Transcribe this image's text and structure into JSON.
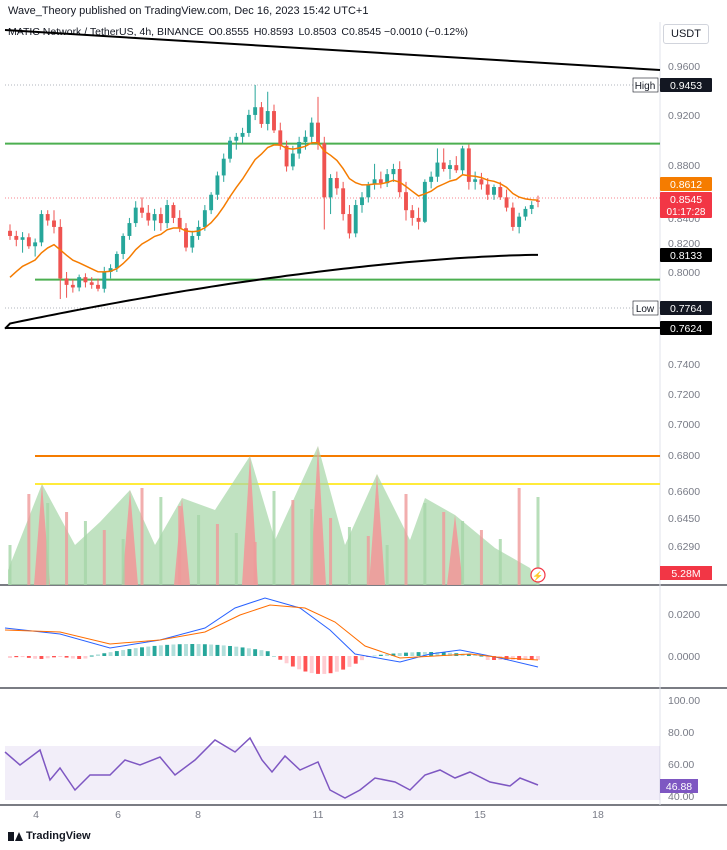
{
  "header": {
    "published": "Wave_Theory published on TradingView.com, Dec 16, 2023 15:42 UTC+1",
    "symbol": "MATIC Network / TetherUS, 4h, BINANCE",
    "o_label": "O",
    "o_val": "0.8555",
    "h_label": "H",
    "h_val": "0.8593",
    "l_label": "L",
    "l_val": "0.8503",
    "c_label": "C",
    "c_val": "0.8545",
    "change": "−0.0010 (−0.12%)",
    "currency": "USDT"
  },
  "footer": {
    "brand": "TradingView"
  },
  "chart_data": {
    "type": "candlestick",
    "price_axis": {
      "ticks": [
        "0.9600",
        "0.9200",
        "0.8800",
        "0.8400",
        "0.8200",
        "0.8000",
        "0.7400",
        "0.7200",
        "0.7000",
        "0.6800",
        "0.6600",
        "0.6450",
        "0.6290"
      ]
    },
    "x_ticks": [
      "4",
      "6",
      "8",
      "11",
      "13",
      "15",
      "18"
    ],
    "badges": {
      "high": {
        "label": "High",
        "value": "0.9453"
      },
      "ema50": {
        "value": "0.8612"
      },
      "last": {
        "value": "0.8545",
        "timer": "01:17:28"
      },
      "ema200": {
        "value": "0.8133"
      },
      "low": {
        "label": "Low",
        "value": "0.7764"
      },
      "trendline": {
        "value": "0.7624"
      }
    },
    "horizontal_levels": [
      0.8997,
      0.7941
    ],
    "trendlines": [
      {
        "from": [
          0,
          0.9815
        ],
        "to": [
          1,
          0.9577
        ]
      },
      {
        "from": [
          0,
          0.76
        ],
        "to": [
          1,
          0.7624
        ]
      }
    ],
    "candles": [
      [
        0.832,
        0.837,
        0.825,
        0.828
      ],
      [
        0.828,
        0.832,
        0.82,
        0.825
      ],
      [
        0.825,
        0.831,
        0.815,
        0.827
      ],
      [
        0.827,
        0.83,
        0.818,
        0.82
      ],
      [
        0.82,
        0.826,
        0.812,
        0.823
      ],
      [
        0.823,
        0.848,
        0.82,
        0.845
      ],
      [
        0.845,
        0.848,
        0.836,
        0.84
      ],
      [
        0.84,
        0.848,
        0.83,
        0.835
      ],
      [
        0.835,
        0.841,
        0.779,
        0.795
      ],
      [
        0.795,
        0.8,
        0.78,
        0.79
      ],
      [
        0.79,
        0.794,
        0.784,
        0.788
      ],
      [
        0.788,
        0.798,
        0.785,
        0.796
      ],
      [
        0.796,
        0.799,
        0.788,
        0.792
      ],
      [
        0.792,
        0.796,
        0.787,
        0.79
      ],
      [
        0.79,
        0.795,
        0.785,
        0.787
      ],
      [
        0.787,
        0.804,
        0.784,
        0.8
      ],
      [
        0.8,
        0.806,
        0.795,
        0.803
      ],
      [
        0.803,
        0.816,
        0.8,
        0.814
      ],
      [
        0.814,
        0.83,
        0.81,
        0.828
      ],
      [
        0.828,
        0.842,
        0.825,
        0.838
      ],
      [
        0.838,
        0.855,
        0.835,
        0.85
      ],
      [
        0.85,
        0.858,
        0.842,
        0.846
      ],
      [
        0.846,
        0.852,
        0.836,
        0.84
      ],
      [
        0.84,
        0.849,
        0.832,
        0.845
      ],
      [
        0.845,
        0.85,
        0.832,
        0.838
      ],
      [
        0.838,
        0.856,
        0.834,
        0.852
      ],
      [
        0.852,
        0.854,
        0.838,
        0.842
      ],
      [
        0.842,
        0.848,
        0.831,
        0.834
      ],
      [
        0.834,
        0.838,
        0.816,
        0.819
      ],
      [
        0.819,
        0.832,
        0.815,
        0.828
      ],
      [
        0.828,
        0.84,
        0.825,
        0.835
      ],
      [
        0.835,
        0.852,
        0.832,
        0.848
      ],
      [
        0.848,
        0.862,
        0.845,
        0.86
      ],
      [
        0.86,
        0.878,
        0.856,
        0.875
      ],
      [
        0.875,
        0.892,
        0.87,
        0.888
      ],
      [
        0.888,
        0.905,
        0.885,
        0.902
      ],
      [
        0.902,
        0.908,
        0.895,
        0.905
      ],
      [
        0.905,
        0.912,
        0.9,
        0.908
      ],
      [
        0.908,
        0.926,
        0.905,
        0.922
      ],
      [
        0.922,
        0.9453,
        0.918,
        0.928
      ],
      [
        0.928,
        0.932,
        0.912,
        0.915
      ],
      [
        0.915,
        0.94,
        0.91,
        0.925
      ],
      [
        0.925,
        0.93,
        0.908,
        0.91
      ],
      [
        0.91,
        0.916,
        0.895,
        0.898
      ],
      [
        0.898,
        0.902,
        0.878,
        0.882
      ],
      [
        0.882,
        0.898,
        0.879,
        0.892
      ],
      [
        0.892,
        0.905,
        0.888,
        0.901
      ],
      [
        0.901,
        0.91,
        0.895,
        0.905
      ],
      [
        0.905,
        0.92,
        0.9,
        0.916
      ],
      [
        0.916,
        0.936,
        0.895,
        0.9
      ],
      [
        0.9,
        0.905,
        0.833,
        0.858
      ],
      [
        0.858,
        0.876,
        0.845,
        0.873
      ],
      [
        0.873,
        0.878,
        0.86,
        0.865
      ],
      [
        0.865,
        0.87,
        0.84,
        0.845
      ],
      [
        0.845,
        0.852,
        0.826,
        0.83
      ],
      [
        0.83,
        0.856,
        0.827,
        0.852
      ],
      [
        0.852,
        0.862,
        0.846,
        0.858
      ],
      [
        0.858,
        0.87,
        0.854,
        0.868
      ],
      [
        0.868,
        0.884,
        0.864,
        0.872
      ],
      [
        0.872,
        0.878,
        0.865,
        0.869
      ],
      [
        0.869,
        0.88,
        0.866,
        0.876
      ],
      [
        0.876,
        0.884,
        0.87,
        0.88
      ],
      [
        0.88,
        0.886,
        0.858,
        0.862
      ],
      [
        0.862,
        0.87,
        0.84,
        0.848
      ],
      [
        0.848,
        0.852,
        0.836,
        0.842
      ],
      [
        0.842,
        0.85,
        0.833,
        0.839
      ],
      [
        0.839,
        0.872,
        0.838,
        0.87
      ],
      [
        0.87,
        0.878,
        0.865,
        0.874
      ],
      [
        0.874,
        0.896,
        0.87,
        0.885
      ],
      [
        0.885,
        0.896,
        0.878,
        0.88
      ],
      [
        0.88,
        0.887,
        0.872,
        0.883
      ],
      [
        0.883,
        0.89,
        0.877,
        0.879
      ],
      [
        0.879,
        0.898,
        0.876,
        0.896
      ],
      [
        0.896,
        0.899,
        0.864,
        0.87
      ],
      [
        0.87,
        0.878,
        0.864,
        0.872
      ],
      [
        0.872,
        0.877,
        0.864,
        0.868
      ],
      [
        0.868,
        0.873,
        0.856,
        0.86
      ],
      [
        0.86,
        0.868,
        0.856,
        0.866
      ],
      [
        0.866,
        0.87,
        0.856,
        0.858
      ],
      [
        0.858,
        0.864,
        0.847,
        0.85
      ],
      [
        0.85,
        0.854,
        0.832,
        0.835
      ],
      [
        0.835,
        0.846,
        0.83,
        0.843
      ],
      [
        0.843,
        0.851,
        0.84,
        0.849
      ],
      [
        0.849,
        0.855,
        0.845,
        0.852
      ],
      [
        0.8555,
        0.8593,
        0.8503,
        0.8545
      ]
    ],
    "volume": {
      "last_label": "5.28M"
    },
    "macd": {
      "ticks": [
        "0.0200",
        "0.0000"
      ]
    },
    "rsi": {
      "ticks": [
        "100.00",
        "80.00",
        "60.00",
        "40.00"
      ],
      "value": "46.88"
    }
  }
}
